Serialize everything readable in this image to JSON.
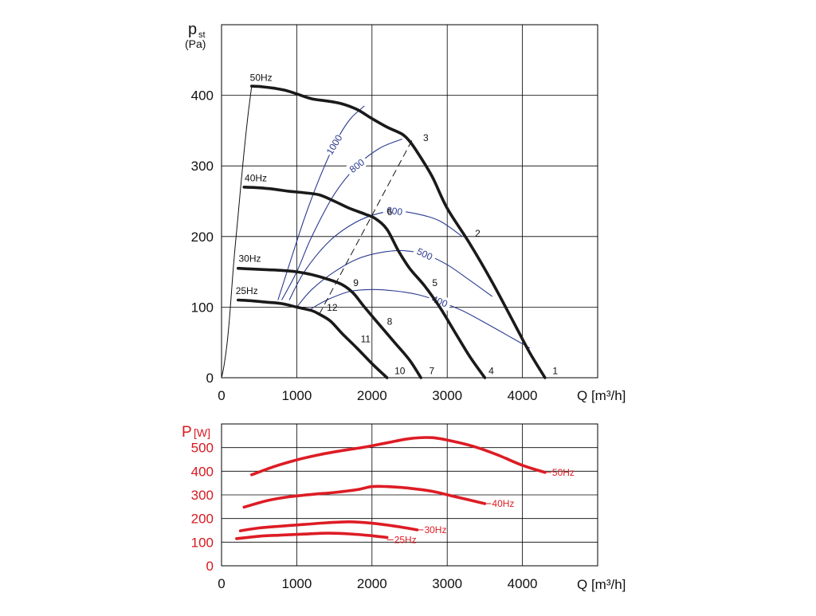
{
  "colors": {
    "grid": "#000000",
    "curve": "#1a1a1a",
    "system": "#2a3a8f",
    "power": "#dd1c24",
    "power_axis_text": "#d81920"
  },
  "chart_data": [
    {
      "type": "line",
      "ylabel_main": "p",
      "ylabel_sub": "st",
      "ylabel_unit": "(Pa)",
      "xlabel": "Q [m³/h]",
      "xlim": [
        0,
        5000
      ],
      "ylim": [
        0,
        500
      ],
      "x_ticks": [
        0,
        1000,
        2000,
        3000,
        4000
      ],
      "y_ticks": [
        0,
        100,
        200,
        300,
        400
      ],
      "grid": true,
      "series": [
        {
          "name": "50Hz",
          "x": [
            400,
            550,
            700,
            850,
            1000,
            1200,
            1400,
            1600,
            1800,
            2000,
            2200,
            2400,
            2500,
            2600,
            2800,
            3000,
            3300,
            3600,
            3900,
            4100,
            4300
          ],
          "y": [
            413,
            412,
            410,
            407,
            402,
            395,
            392,
            388,
            380,
            367,
            355,
            345,
            335,
            320,
            285,
            240,
            190,
            135,
            75,
            35,
            0
          ]
        },
        {
          "name": "40Hz",
          "x": [
            300,
            500,
            700,
            900,
            1100,
            1300,
            1500,
            1700,
            1900,
            2050,
            2200,
            2350,
            2500,
            2700,
            2900,
            3100,
            3300,
            3500
          ],
          "y": [
            270,
            269,
            267,
            264,
            262,
            259,
            250,
            240,
            232,
            225,
            210,
            180,
            155,
            130,
            100,
            65,
            30,
            0
          ]
        },
        {
          "name": "30Hz",
          "x": [
            220,
            400,
            600,
            800,
            1000,
            1200,
            1400,
            1600,
            1750,
            1900,
            2100,
            2300,
            2500,
            2650
          ],
          "y": [
            155,
            154,
            153,
            152,
            150,
            146,
            140,
            132,
            120,
            100,
            75,
            50,
            25,
            0
          ]
        },
        {
          "name": "25Hz",
          "x": [
            220,
            400,
            600,
            800,
            1000,
            1200,
            1300,
            1450,
            1600,
            1800,
            2000,
            2200
          ],
          "y": [
            110,
            109,
            107,
            105,
            100,
            95,
            90,
            80,
            63,
            42,
            20,
            0
          ]
        }
      ],
      "system_curves": [
        {
          "label": "1000",
          "x": [
            750,
            900,
            1100,
            1300,
            1500,
            1700,
            1900
          ],
          "y": [
            110,
            160,
            225,
            282,
            330,
            365,
            385
          ]
        },
        {
          "label": "800",
          "x": [
            800,
            1000,
            1200,
            1500,
            1800,
            2100,
            2400
          ],
          "y": [
            110,
            150,
            200,
            260,
            300,
            325,
            338
          ]
        },
        {
          "label": "600",
          "x": [
            900,
            1100,
            1400,
            1700,
            2000,
            2300,
            2600,
            2900,
            3200
          ],
          "y": [
            110,
            150,
            190,
            215,
            230,
            236,
            232,
            222,
            200
          ]
        },
        {
          "label": "500",
          "x": [
            1000,
            1200,
            1500,
            1800,
            2100,
            2400,
            2700,
            3000,
            3300,
            3600
          ],
          "y": [
            100,
            125,
            150,
            168,
            177,
            180,
            175,
            160,
            138,
            115
          ]
        },
        {
          "label": "400",
          "x": [
            1150,
            1400,
            1700,
            2000,
            2300,
            2600,
            2900,
            3200,
            3500,
            3800,
            4100
          ],
          "y": [
            95,
            110,
            122,
            125,
            123,
            118,
            108,
            95,
            78,
            60,
            42
          ]
        }
      ],
      "efficiency_line": {
        "x": [
          1300,
          2550
        ],
        "y": [
          90,
          340
        ]
      },
      "startup_curve": {
        "x": [
          0,
          30,
          70,
          110,
          160,
          220,
          290,
          350,
          400
        ],
        "y": [
          0,
          15,
          45,
          90,
          160,
          230,
          310,
          370,
          413
        ]
      },
      "point_labels": [
        {
          "text": "1",
          "x": 4400,
          "y": 5
        },
        {
          "text": "2",
          "x": 3370,
          "y": 200
        },
        {
          "text": "3",
          "x": 2680,
          "y": 335
        },
        {
          "text": "4",
          "x": 3550,
          "y": 5
        },
        {
          "text": "5",
          "x": 2800,
          "y": 130
        },
        {
          "text": "6",
          "x": 2200,
          "y": 230
        },
        {
          "text": "7",
          "x": 2760,
          "y": 5
        },
        {
          "text": "8",
          "x": 2200,
          "y": 75
        },
        {
          "text": "9",
          "x": 1750,
          "y": 130
        },
        {
          "text": "10",
          "x": 2300,
          "y": 5
        },
        {
          "text": "11",
          "x": 1850,
          "y": 50
        },
        {
          "text": "12",
          "x": 1400,
          "y": 95
        }
      ],
      "speed_labels": [
        {
          "text": "50Hz",
          "x": 420,
          "y": 418
        },
        {
          "text": "40Hz",
          "x": 350,
          "y": 276
        },
        {
          "text": "30Hz",
          "x": 270,
          "y": 162
        },
        {
          "text": "25Hz",
          "x": 230,
          "y": 116
        }
      ]
    },
    {
      "type": "line",
      "ylabel_main": "P",
      "ylabel_unit": "[W]",
      "xlabel": "Q [m³/h]",
      "xlim": [
        0,
        5000
      ],
      "ylim": [
        0,
        600
      ],
      "x_ticks": [
        0,
        1000,
        2000,
        3000,
        4000
      ],
      "y_ticks": [
        0,
        100,
        200,
        300,
        400,
        500
      ],
      "grid": true,
      "series": [
        {
          "name": "50Hz",
          "x": [
            400,
            700,
            1000,
            1300,
            1600,
            1900,
            2200,
            2500,
            2800,
            3100,
            3400,
            3700,
            4000,
            4300
          ],
          "y": [
            385,
            420,
            448,
            470,
            487,
            502,
            520,
            538,
            542,
            525,
            500,
            465,
            425,
            395
          ]
        },
        {
          "name": "40Hz",
          "x": [
            300,
            600,
            900,
            1200,
            1500,
            1800,
            2000,
            2200,
            2500,
            2800,
            3100,
            3500
          ],
          "y": [
            248,
            275,
            292,
            302,
            310,
            322,
            335,
            335,
            328,
            315,
            293,
            263
          ]
        },
        {
          "name": "30Hz",
          "x": [
            250,
            500,
            800,
            1100,
            1400,
            1700,
            2000,
            2300,
            2600
          ],
          "y": [
            148,
            160,
            168,
            175,
            182,
            186,
            180,
            168,
            152
          ]
        },
        {
          "name": "25Hz",
          "x": [
            200,
            500,
            800,
            1100,
            1400,
            1700,
            2000,
            2200
          ],
          "y": [
            115,
            125,
            130,
            134,
            138,
            135,
            127,
            120
          ]
        }
      ],
      "speed_labels": [
        {
          "text": "50Hz",
          "x": 4300,
          "y": 395
        },
        {
          "text": "40Hz",
          "x": 3500,
          "y": 263
        },
        {
          "text": "30Hz",
          "x": 2600,
          "y": 152
        },
        {
          "text": "25Hz",
          "x": 2200,
          "y": 110
        }
      ]
    }
  ]
}
